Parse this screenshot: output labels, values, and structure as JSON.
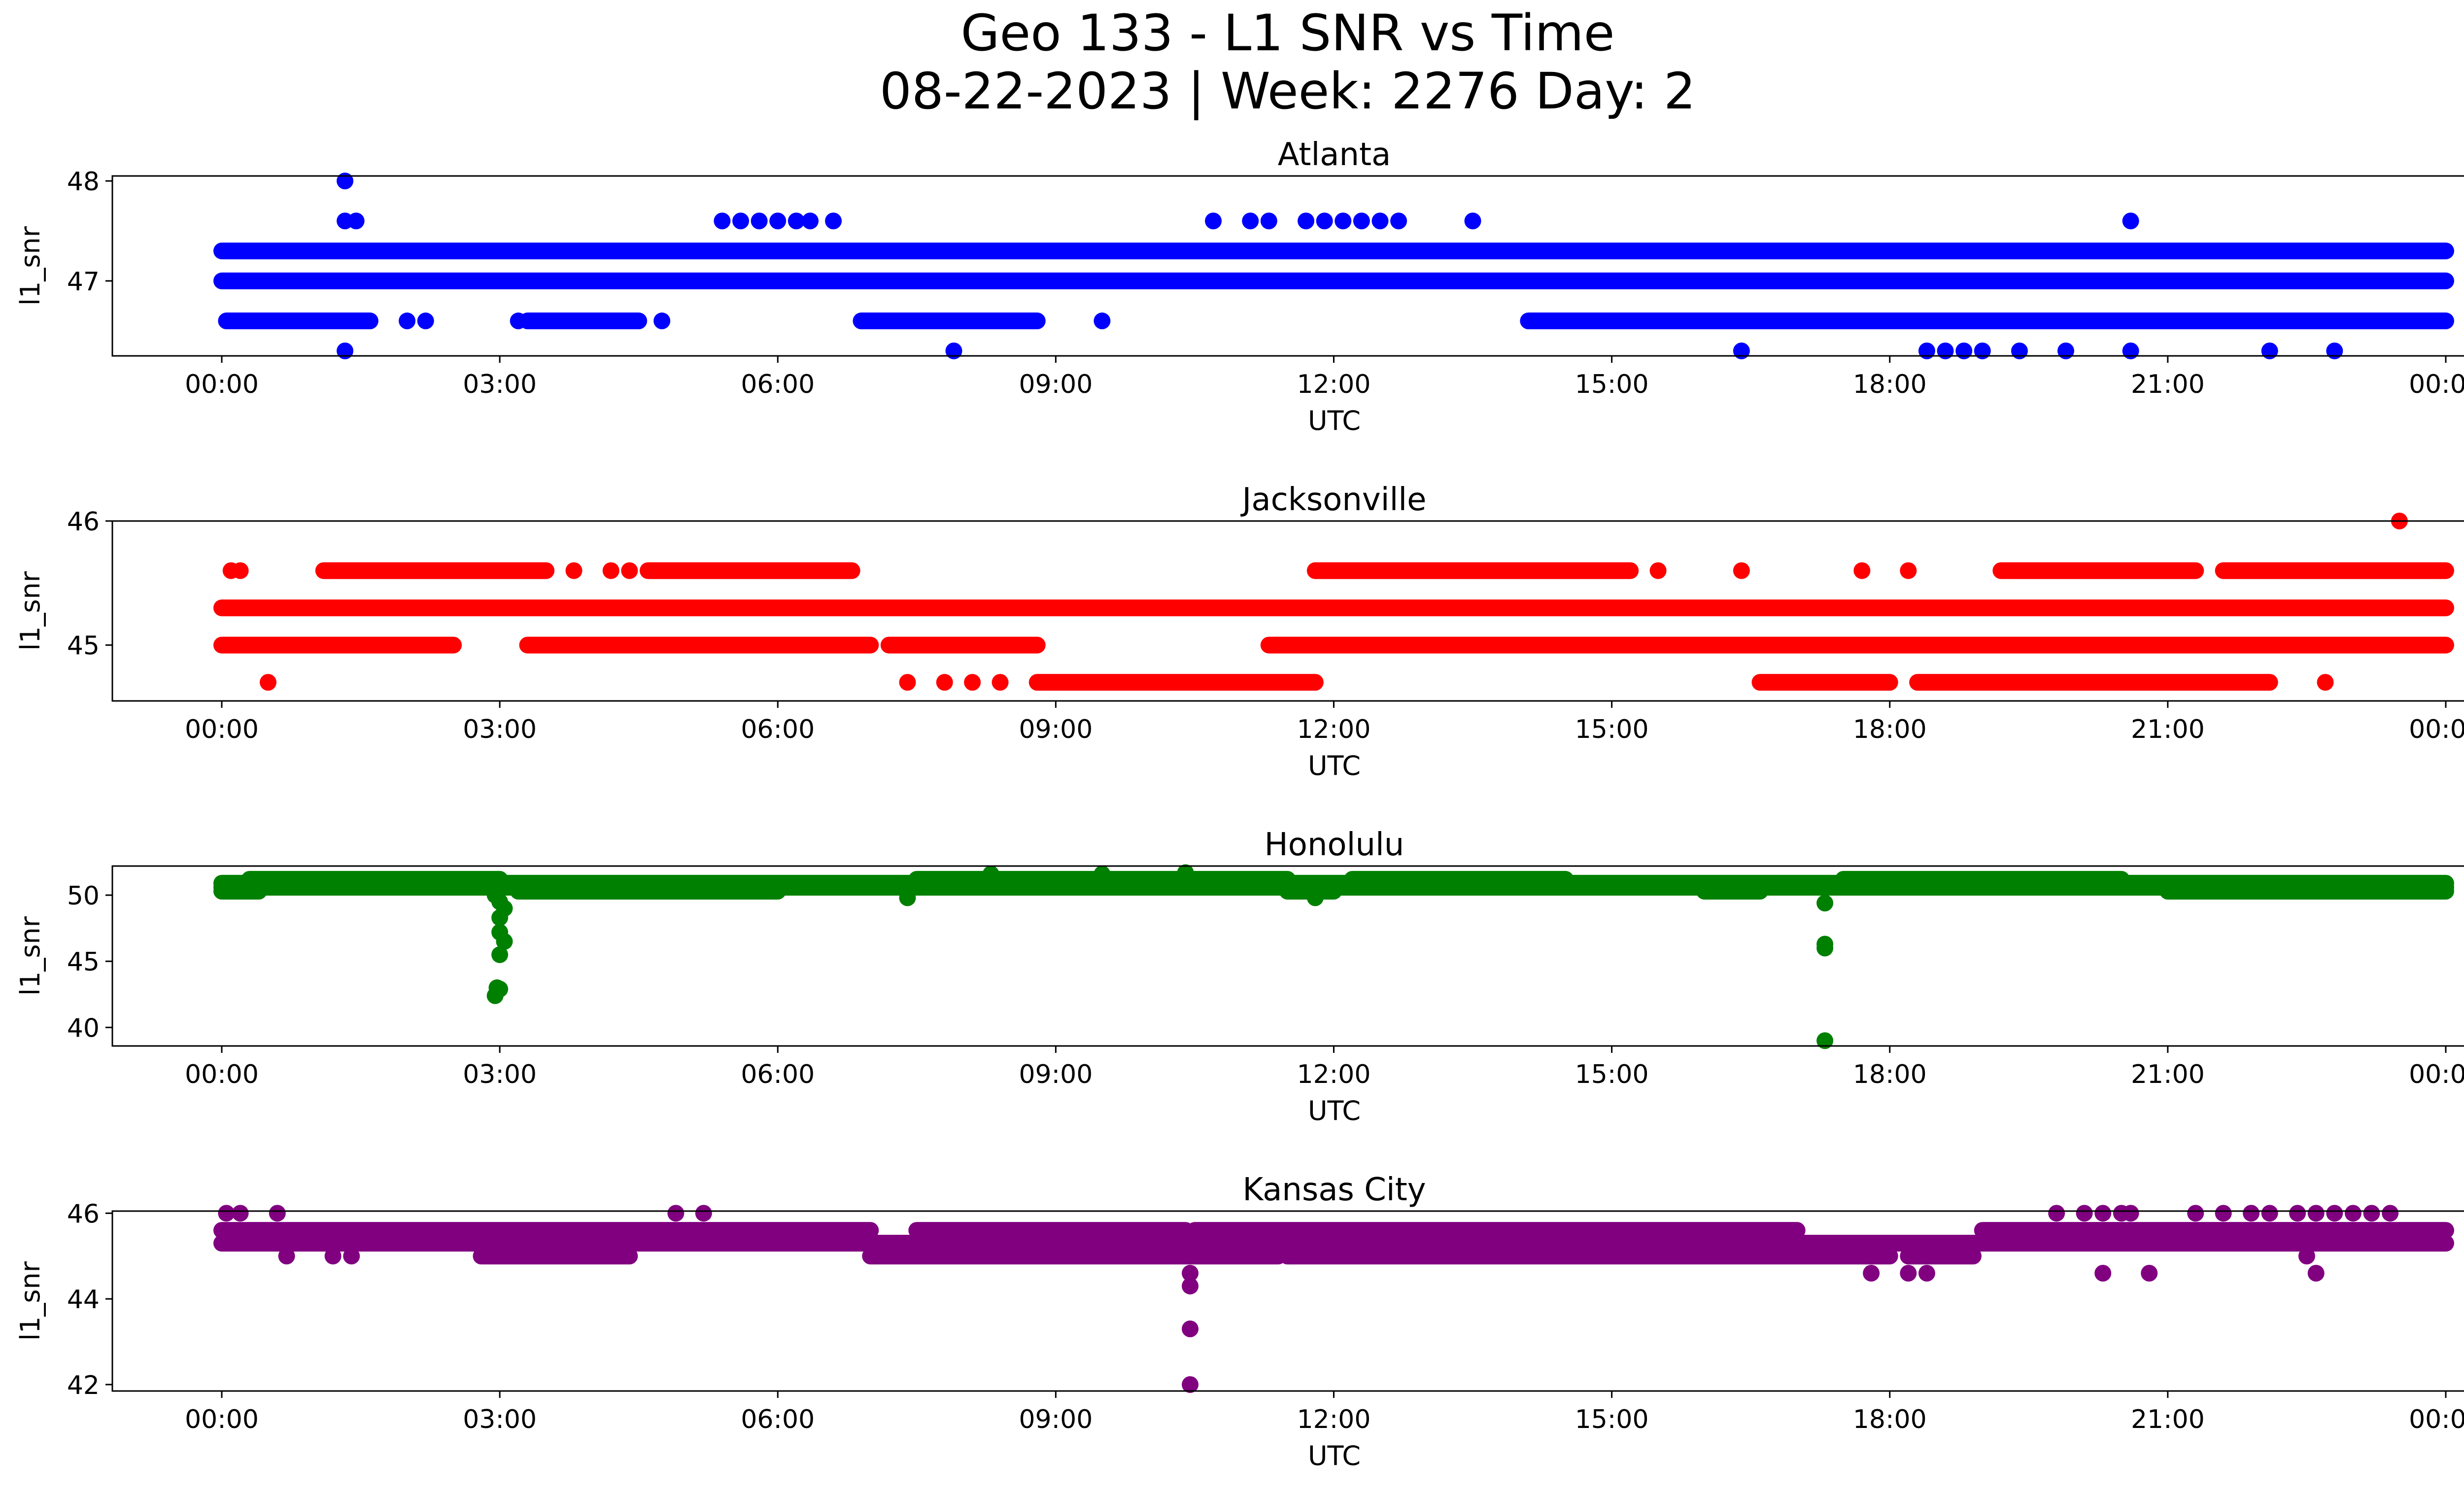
{
  "figure": {
    "title_line1": "Geo 133 - L1 SNR vs Time",
    "title_line2": "08-22-2023 | Week: 2276 Day: 2"
  },
  "chart_data": [
    {
      "type": "scatter",
      "title": "Atlanta",
      "xlabel": "UTC",
      "ylabel": "l1_snr",
      "color": "#0000ff",
      "xlim": [
        "00:00",
        "24:00"
      ],
      "xticks": [
        "00:00",
        "03:00",
        "06:00",
        "09:00",
        "12:00",
        "15:00",
        "18:00",
        "21:00",
        "00:00"
      ],
      "ylim": [
        46.25,
        48.05
      ],
      "yticks": [
        47,
        48
      ],
      "grid": false,
      "bands": [
        {
          "y": 47.3,
          "x_range": [
            0.0,
            24.0
          ]
        },
        {
          "y": 47.0,
          "x_range": [
            0.0,
            24.0
          ]
        },
        {
          "y": 46.6,
          "x_ranges": [
            [
              0.05,
              1.6
            ],
            [
              3.3,
              4.5
            ],
            [
              6.9,
              8.8
            ],
            [
              14.1,
              24.0
            ]
          ]
        }
      ],
      "points": [
        {
          "x": 1.33,
          "y": 48.0
        },
        {
          "x": 1.33,
          "y": 47.6
        },
        {
          "x": 1.45,
          "y": 47.6
        },
        {
          "x": 5.4,
          "y": 47.6
        },
        {
          "x": 5.6,
          "y": 47.6
        },
        {
          "x": 5.8,
          "y": 47.6
        },
        {
          "x": 6.0,
          "y": 47.6
        },
        {
          "x": 6.2,
          "y": 47.6
        },
        {
          "x": 6.35,
          "y": 47.6
        },
        {
          "x": 6.6,
          "y": 47.6
        },
        {
          "x": 10.7,
          "y": 47.6
        },
        {
          "x": 11.1,
          "y": 47.6
        },
        {
          "x": 11.3,
          "y": 47.6
        },
        {
          "x": 11.7,
          "y": 47.6
        },
        {
          "x": 11.9,
          "y": 47.6
        },
        {
          "x": 12.1,
          "y": 47.6
        },
        {
          "x": 12.3,
          "y": 47.6
        },
        {
          "x": 12.5,
          "y": 47.6
        },
        {
          "x": 12.7,
          "y": 47.6
        },
        {
          "x": 13.5,
          "y": 47.6
        },
        {
          "x": 20.6,
          "y": 47.6
        },
        {
          "x": 2.0,
          "y": 46.6
        },
        {
          "x": 2.2,
          "y": 46.6
        },
        {
          "x": 3.2,
          "y": 46.6
        },
        {
          "x": 4.75,
          "y": 46.6
        },
        {
          "x": 9.5,
          "y": 46.6
        },
        {
          "x": 1.33,
          "y": 46.3
        },
        {
          "x": 7.9,
          "y": 46.3
        },
        {
          "x": 16.4,
          "y": 46.3
        },
        {
          "x": 18.4,
          "y": 46.3
        },
        {
          "x": 18.6,
          "y": 46.3
        },
        {
          "x": 18.8,
          "y": 46.3
        },
        {
          "x": 19.0,
          "y": 46.3
        },
        {
          "x": 19.4,
          "y": 46.3
        },
        {
          "x": 19.9,
          "y": 46.3
        },
        {
          "x": 20.6,
          "y": 46.3
        },
        {
          "x": 22.1,
          "y": 46.3
        },
        {
          "x": 22.8,
          "y": 46.3
        }
      ]
    },
    {
      "type": "scatter",
      "title": "Jacksonville",
      "xlabel": "UTC",
      "ylabel": "l1_snr",
      "color": "#ff0000",
      "xlim": [
        "00:00",
        "24:00"
      ],
      "xticks": [
        "00:00",
        "03:00",
        "06:00",
        "09:00",
        "12:00",
        "15:00",
        "18:00",
        "21:00",
        "00:00"
      ],
      "ylim": [
        44.55,
        46.0
      ],
      "yticks": [
        45,
        46
      ],
      "grid": false,
      "bands": [
        {
          "y": 45.3,
          "x_range": [
            0.0,
            24.0
          ]
        },
        {
          "y": 45.0,
          "x_ranges": [
            [
              0.0,
              2.5
            ],
            [
              3.3,
              7.0
            ],
            [
              7.2,
              8.8
            ],
            [
              11.3,
              24.0
            ]
          ]
        },
        {
          "y": 45.6,
          "x_ranges": [
            [
              1.1,
              3.5
            ],
            [
              4.6,
              6.8
            ],
            [
              11.8,
              15.2
            ],
            [
              19.2,
              21.3
            ],
            [
              21.6,
              24.0
            ]
          ]
        },
        {
          "y": 44.7,
          "x_ranges": [
            [
              8.8,
              11.8
            ],
            [
              16.6,
              18.0
            ],
            [
              18.3,
              22.1
            ]
          ]
        }
      ],
      "points": [
        {
          "x": 0.1,
          "y": 45.6
        },
        {
          "x": 0.2,
          "y": 45.6
        },
        {
          "x": 3.8,
          "y": 45.6
        },
        {
          "x": 4.2,
          "y": 45.6
        },
        {
          "x": 4.4,
          "y": 45.6
        },
        {
          "x": 15.5,
          "y": 45.6
        },
        {
          "x": 16.4,
          "y": 45.6
        },
        {
          "x": 17.7,
          "y": 45.6
        },
        {
          "x": 18.2,
          "y": 45.6
        },
        {
          "x": 23.5,
          "y": 46.0
        },
        {
          "x": 0.5,
          "y": 44.7
        },
        {
          "x": 7.4,
          "y": 44.7
        },
        {
          "x": 7.8,
          "y": 44.7
        },
        {
          "x": 8.1,
          "y": 44.7
        },
        {
          "x": 8.4,
          "y": 44.7
        },
        {
          "x": 22.7,
          "y": 44.7
        }
      ]
    },
    {
      "type": "scatter",
      "title": "Honolulu",
      "xlabel": "UTC",
      "ylabel": "l1_snr",
      "color": "#008000",
      "xlim": [
        "00:00",
        "24:00"
      ],
      "xticks": [
        "00:00",
        "03:00",
        "06:00",
        "09:00",
        "12:00",
        "15:00",
        "18:00",
        "21:00",
        "00:00"
      ],
      "ylim": [
        38.6,
        52.2
      ],
      "yticks": [
        40,
        45,
        50
      ],
      "grid": false,
      "bands": [
        {
          "y": 50.6,
          "x_range": [
            0.0,
            24.0
          ]
        },
        {
          "y": 50.9,
          "x_range": [
            0.0,
            24.0
          ]
        },
        {
          "y": 51.2,
          "x_ranges": [
            [
              0.3,
              3.0
            ],
            [
              7.5,
              11.5
            ],
            [
              12.2,
              14.5
            ],
            [
              17.5,
              20.5
            ]
          ]
        },
        {
          "y": 50.3,
          "x_ranges": [
            [
              0.0,
              0.4
            ],
            [
              3.2,
              6.0
            ],
            [
              11.5,
              12.0
            ],
            [
              16.0,
              16.6
            ],
            [
              21.0,
              24.0
            ]
          ]
        }
      ],
      "points": [
        {
          "x": 2.95,
          "y": 50.0
        },
        {
          "x": 3.0,
          "y": 49.5
        },
        {
          "x": 3.05,
          "y": 49.0
        },
        {
          "x": 3.0,
          "y": 48.3
        },
        {
          "x": 3.0,
          "y": 47.2
        },
        {
          "x": 3.05,
          "y": 46.5
        },
        {
          "x": 3.0,
          "y": 45.5
        },
        {
          "x": 2.97,
          "y": 43.0
        },
        {
          "x": 2.95,
          "y": 42.4
        },
        {
          "x": 3.0,
          "y": 42.9
        },
        {
          "x": 17.3,
          "y": 49.4
        },
        {
          "x": 17.3,
          "y": 46.3
        },
        {
          "x": 17.3,
          "y": 46.0
        },
        {
          "x": 17.3,
          "y": 39.0
        },
        {
          "x": 8.3,
          "y": 51.6
        },
        {
          "x": 9.5,
          "y": 51.6
        },
        {
          "x": 10.4,
          "y": 51.7
        },
        {
          "x": 7.4,
          "y": 49.8
        },
        {
          "x": 11.8,
          "y": 49.8
        }
      ]
    },
    {
      "type": "scatter",
      "title": "Kansas City",
      "xlabel": "UTC",
      "ylabel": "l1_snr",
      "color": "#800080",
      "xlim": [
        "00:00",
        "24:00"
      ],
      "xticks": [
        "00:00",
        "03:00",
        "06:00",
        "09:00",
        "12:00",
        "15:00",
        "18:00",
        "21:00",
        "00:00"
      ],
      "ylim": [
        41.85,
        46.05
      ],
      "yticks": [
        42,
        44,
        46
      ],
      "grid": false,
      "bands": [
        {
          "y": 45.3,
          "x_range": [
            0.0,
            24.0
          ]
        },
        {
          "y": 45.6,
          "x_ranges": [
            [
              0.0,
              7.0
            ],
            [
              7.5,
              10.4
            ],
            [
              10.5,
              17.0
            ],
            [
              19.0,
              24.0
            ]
          ]
        },
        {
          "y": 45.0,
          "x_ranges": [
            [
              2.8,
              4.4
            ],
            [
              7.0,
              11.4
            ],
            [
              11.5,
              18.0
            ],
            [
              18.2,
              18.9
            ]
          ]
        }
      ],
      "points": [
        {
          "x": 0.05,
          "y": 46.0
        },
        {
          "x": 0.2,
          "y": 46.0
        },
        {
          "x": 0.6,
          "y": 46.0
        },
        {
          "x": 4.9,
          "y": 46.0
        },
        {
          "x": 5.2,
          "y": 46.0
        },
        {
          "x": 19.8,
          "y": 46.0
        },
        {
          "x": 20.1,
          "y": 46.0
        },
        {
          "x": 20.3,
          "y": 46.0
        },
        {
          "x": 20.5,
          "y": 46.0
        },
        {
          "x": 20.6,
          "y": 46.0
        },
        {
          "x": 21.3,
          "y": 46.0
        },
        {
          "x": 21.6,
          "y": 46.0
        },
        {
          "x": 21.9,
          "y": 46.0
        },
        {
          "x": 22.1,
          "y": 46.0
        },
        {
          "x": 22.4,
          "y": 46.0
        },
        {
          "x": 22.6,
          "y": 46.0
        },
        {
          "x": 22.8,
          "y": 46.0
        },
        {
          "x": 23.0,
          "y": 46.0
        },
        {
          "x": 23.2,
          "y": 46.0
        },
        {
          "x": 23.4,
          "y": 46.0
        },
        {
          "x": 17.8,
          "y": 44.6
        },
        {
          "x": 18.2,
          "y": 44.6
        },
        {
          "x": 18.4,
          "y": 44.6
        },
        {
          "x": 20.3,
          "y": 44.6
        },
        {
          "x": 20.8,
          "y": 44.6
        },
        {
          "x": 22.6,
          "y": 44.6
        },
        {
          "x": 0.7,
          "y": 45.0
        },
        {
          "x": 1.2,
          "y": 45.0
        },
        {
          "x": 1.4,
          "y": 45.0
        },
        {
          "x": 22.5,
          "y": 45.0
        },
        {
          "x": 10.45,
          "y": 44.6
        },
        {
          "x": 10.45,
          "y": 44.3
        },
        {
          "x": 10.45,
          "y": 43.3
        },
        {
          "x": 10.45,
          "y": 42.0
        }
      ]
    }
  ]
}
